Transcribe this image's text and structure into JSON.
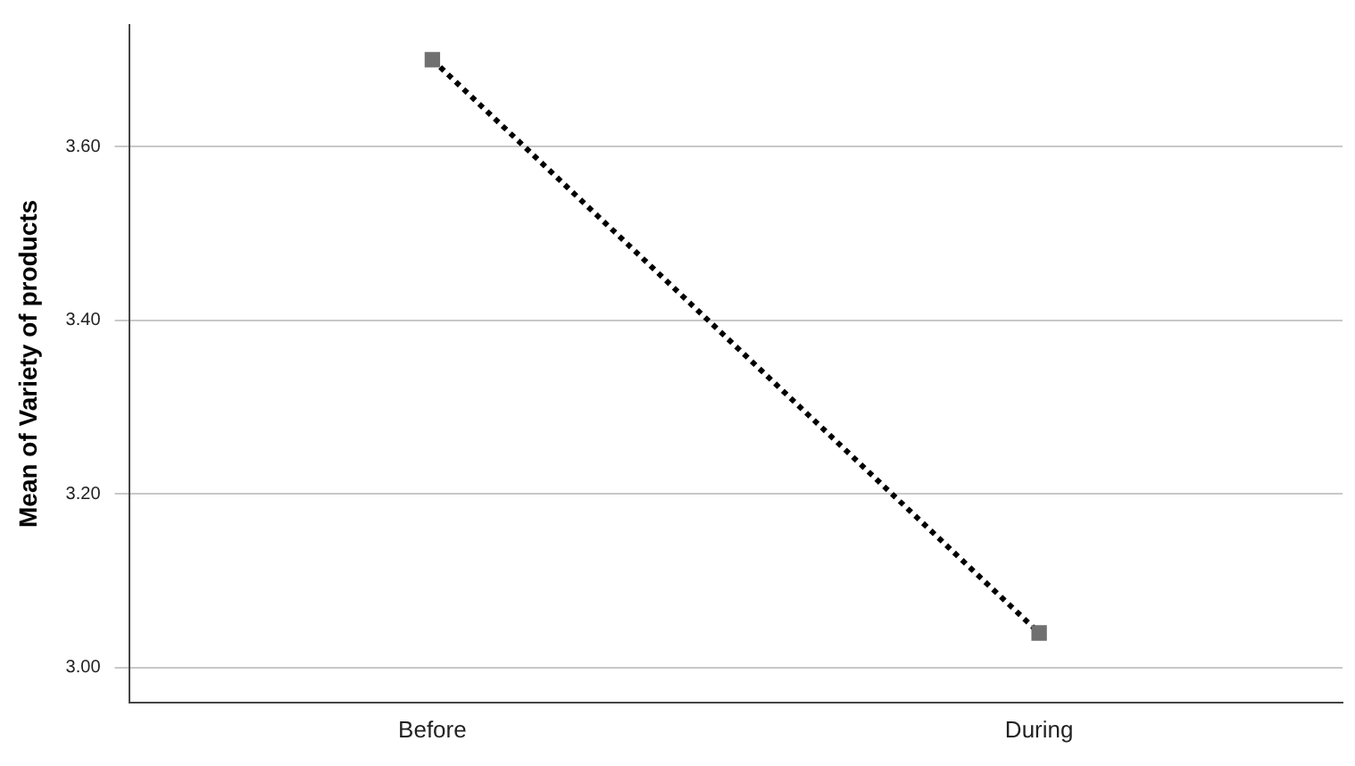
{
  "chart_data": {
    "type": "line",
    "ylabel": "Mean of Variety of products",
    "categories": [
      "Before",
      "During"
    ],
    "series": [
      {
        "color": "#000000",
        "values": [
          3.7,
          3.04
        ]
      }
    ],
    "ylim": [
      2.96,
      3.74
    ],
    "yticks": [
      {
        "value": 3.0,
        "label": "3.00"
      },
      {
        "value": 3.2,
        "label": "3.20"
      },
      {
        "value": 3.4,
        "label": "3.40"
      },
      {
        "value": 3.6,
        "label": "3.60"
      }
    ],
    "grid": "y",
    "legend": false,
    "marker": "square",
    "line_style": "dotted"
  }
}
